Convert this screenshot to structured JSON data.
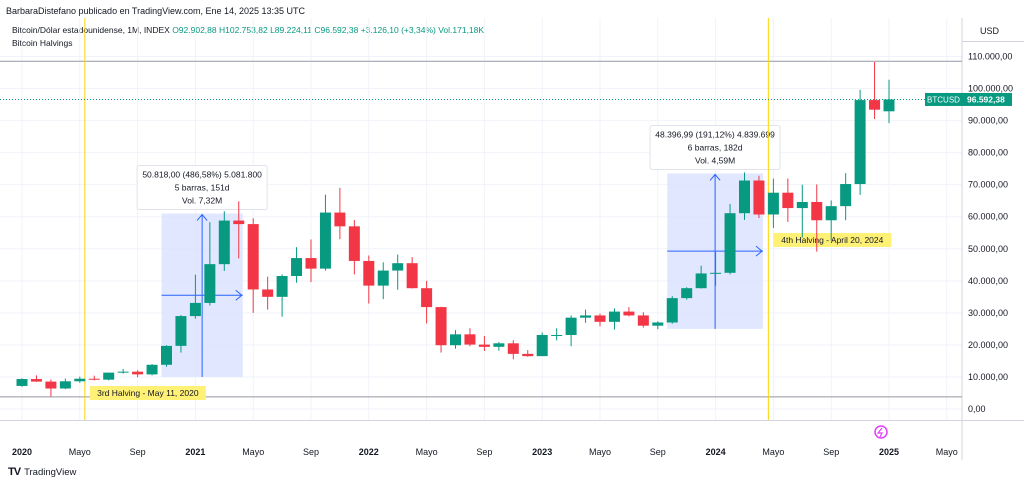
{
  "header": {
    "published_by": "BarbaraDistefano publicado en TradingView.com, Ene 14, 2025 13:35 UTC",
    "symbol_line": "Bitcoin/Dólar estadounidense, 1M, INDEX",
    "ohlc": {
      "open": "O92.902,88",
      "high": "H102.753,82",
      "low": "L89.224,11",
      "close": "C96.592,38",
      "change": "+3.126,10 (+3,34%)",
      "volume": "Vol.171,18K"
    },
    "indicator": "Bitcoin Halvings"
  },
  "price_axis": {
    "currency": "USD",
    "ticks": [
      "110.000,00",
      "100.000,00",
      "90.000,00",
      "80.000,00",
      "70.000,00",
      "60.000,00",
      "50.000,00",
      "40.000,00",
      "30.000,00",
      "20.000,00",
      "10.000,00",
      "0,00"
    ]
  },
  "time_axis": {
    "labels": [
      {
        "t": 0,
        "label": "2020",
        "bold": true
      },
      {
        "t": 4,
        "label": "Mayo",
        "bold": false
      },
      {
        "t": 8,
        "label": "Sep",
        "bold": false
      },
      {
        "t": 12,
        "label": "2021",
        "bold": true
      },
      {
        "t": 16,
        "label": "Mayo",
        "bold": false
      },
      {
        "t": 20,
        "label": "Sep",
        "bold": false
      },
      {
        "t": 24,
        "label": "2022",
        "bold": true
      },
      {
        "t": 28,
        "label": "Mayo",
        "bold": false
      },
      {
        "t": 32,
        "label": "Sep",
        "bold": false
      },
      {
        "t": 36,
        "label": "2023",
        "bold": true
      },
      {
        "t": 40,
        "label": "Mayo",
        "bold": false
      },
      {
        "t": 44,
        "label": "Sep",
        "bold": false
      },
      {
        "t": 48,
        "label": "2024",
        "bold": true
      },
      {
        "t": 52,
        "label": "Mayo",
        "bold": false
      },
      {
        "t": 56,
        "label": "Sep",
        "bold": false
      },
      {
        "t": 60,
        "label": "2025",
        "bold": true
      },
      {
        "t": 64,
        "label": "Mayo",
        "bold": false
      }
    ]
  },
  "price_label": {
    "symbol": "BTCUSD",
    "value": "96.592,38"
  },
  "halvings": [
    {
      "t": 4.35,
      "label": "3rd Halving - May 11, 2020"
    },
    {
      "t": 51.65,
      "label": "4th Halving - April 20, 2024"
    }
  ],
  "measures": [
    {
      "t_start": 10,
      "t_end": 15,
      "p_start": 10000,
      "p_end": 61000,
      "line1": "50.818,00 (486,58%) 5.081.800",
      "line2": "5 barras, 151d",
      "line3": "Vol. 7,32M"
    },
    {
      "t_start": 45,
      "t_end": 51,
      "p_start": 25000,
      "p_end": 73500,
      "line1": "48.396,99 (191,12%) 4.839.699",
      "line2": "6 barras, 182d",
      "line3": "Vol. 4,59M"
    }
  ],
  "reference_lines": {
    "upper": 108500,
    "lower": 3800
  },
  "colors": {
    "up": "#089981",
    "down": "#f23645",
    "measure_fill": "#dbe3ff",
    "measure_line": "#2962ff",
    "halving_line": "#ffd600",
    "halving_label_bg": "#fff176",
    "price_line": "#089981"
  },
  "footer": {
    "brand": "TradingView",
    "logo_text": "TV"
  },
  "chart_data": {
    "type": "candlestick",
    "title": "Bitcoin/Dólar estadounidense, 1M, INDEX",
    "ylabel": "USD",
    "ylim": [
      -4000,
      117000
    ],
    "series": [
      {
        "t": 0,
        "o": 7200,
        "h": 9600,
        "l": 6900,
        "c": 9350
      },
      {
        "t": 1,
        "o": 9350,
        "h": 10500,
        "l": 8500,
        "c": 8550
      },
      {
        "t": 2,
        "o": 8550,
        "h": 9200,
        "l": 3850,
        "c": 6400
      },
      {
        "t": 3,
        "o": 6400,
        "h": 9500,
        "l": 6200,
        "c": 8650
      },
      {
        "t": 4,
        "o": 8650,
        "h": 10100,
        "l": 8200,
        "c": 9450
      },
      {
        "t": 5,
        "o": 9450,
        "h": 10400,
        "l": 8900,
        "c": 9150
      },
      {
        "t": 6,
        "o": 9150,
        "h": 11400,
        "l": 8950,
        "c": 11350
      },
      {
        "t": 7,
        "o": 11350,
        "h": 12500,
        "l": 11050,
        "c": 11650
      },
      {
        "t": 8,
        "o": 11650,
        "h": 12100,
        "l": 9900,
        "c": 10800
      },
      {
        "t": 9,
        "o": 10800,
        "h": 14000,
        "l": 10500,
        "c": 13800
      },
      {
        "t": 10,
        "o": 13800,
        "h": 19900,
        "l": 13200,
        "c": 19700
      },
      {
        "t": 11,
        "o": 19700,
        "h": 29300,
        "l": 17600,
        "c": 29000
      },
      {
        "t": 12,
        "o": 29000,
        "h": 41900,
        "l": 28200,
        "c": 33100
      },
      {
        "t": 13,
        "o": 33100,
        "h": 58300,
        "l": 32300,
        "c": 45200
      },
      {
        "t": 14,
        "o": 45200,
        "h": 61700,
        "l": 43100,
        "c": 58800
      },
      {
        "t": 15,
        "o": 58800,
        "h": 64800,
        "l": 47000,
        "c": 57700
      },
      {
        "t": 16,
        "o": 57700,
        "h": 59500,
        "l": 30000,
        "c": 37300
      },
      {
        "t": 17,
        "o": 37300,
        "h": 41300,
        "l": 31000,
        "c": 35000
      },
      {
        "t": 18,
        "o": 35000,
        "h": 42000,
        "l": 28800,
        "c": 41500
      },
      {
        "t": 19,
        "o": 41500,
        "h": 50500,
        "l": 39400,
        "c": 47100
      },
      {
        "t": 20,
        "o": 47100,
        "h": 52900,
        "l": 39600,
        "c": 43800
      },
      {
        "t": 21,
        "o": 43800,
        "h": 66900,
        "l": 43200,
        "c": 61300
      },
      {
        "t": 22,
        "o": 61300,
        "h": 69000,
        "l": 53000,
        "c": 57000
      },
      {
        "t": 23,
        "o": 57000,
        "h": 59000,
        "l": 42000,
        "c": 46200
      },
      {
        "t": 24,
        "o": 46200,
        "h": 47900,
        "l": 32900,
        "c": 38500
      },
      {
        "t": 25,
        "o": 38500,
        "h": 45800,
        "l": 34300,
        "c": 43200
      },
      {
        "t": 26,
        "o": 43200,
        "h": 48200,
        "l": 37200,
        "c": 45500
      },
      {
        "t": 27,
        "o": 45500,
        "h": 47400,
        "l": 37600,
        "c": 37700
      },
      {
        "t": 28,
        "o": 37700,
        "h": 40000,
        "l": 26700,
        "c": 31800
      },
      {
        "t": 29,
        "o": 31800,
        "h": 31900,
        "l": 17600,
        "c": 19900
      },
      {
        "t": 30,
        "o": 19900,
        "h": 24600,
        "l": 18800,
        "c": 23300
      },
      {
        "t": 31,
        "o": 23300,
        "h": 25200,
        "l": 19600,
        "c": 20100
      },
      {
        "t": 32,
        "o": 20100,
        "h": 22800,
        "l": 18100,
        "c": 19400
      },
      {
        "t": 33,
        "o": 19400,
        "h": 20900,
        "l": 18200,
        "c": 20500
      },
      {
        "t": 34,
        "o": 20500,
        "h": 21500,
        "l": 15500,
        "c": 17200
      },
      {
        "t": 35,
        "o": 17200,
        "h": 18400,
        "l": 16300,
        "c": 16500
      },
      {
        "t": 36,
        "o": 16500,
        "h": 23900,
        "l": 16500,
        "c": 23100
      },
      {
        "t": 37,
        "o": 23100,
        "h": 25200,
        "l": 21400,
        "c": 23100
      },
      {
        "t": 38,
        "o": 23100,
        "h": 29200,
        "l": 19600,
        "c": 28500
      },
      {
        "t": 39,
        "o": 28500,
        "h": 31000,
        "l": 26900,
        "c": 29200
      },
      {
        "t": 40,
        "o": 29200,
        "h": 29800,
        "l": 25800,
        "c": 27200
      },
      {
        "t": 41,
        "o": 27200,
        "h": 31400,
        "l": 24800,
        "c": 30400
      },
      {
        "t": 42,
        "o": 30400,
        "h": 31800,
        "l": 28900,
        "c": 29200
      },
      {
        "t": 43,
        "o": 29200,
        "h": 30200,
        "l": 25400,
        "c": 26000
      },
      {
        "t": 44,
        "o": 26000,
        "h": 27400,
        "l": 24900,
        "c": 27000
      },
      {
        "t": 45,
        "o": 27000,
        "h": 35200,
        "l": 26600,
        "c": 34600
      },
      {
        "t": 46,
        "o": 34600,
        "h": 38000,
        "l": 34100,
        "c": 37700
      },
      {
        "t": 47,
        "o": 37700,
        "h": 44700,
        "l": 37600,
        "c": 42300
      },
      {
        "t": 48,
        "o": 42300,
        "h": 48900,
        "l": 38500,
        "c": 42500
      },
      {
        "t": 49,
        "o": 42500,
        "h": 64000,
        "l": 42000,
        "c": 61100
      },
      {
        "t": 50,
        "o": 61100,
        "h": 73800,
        "l": 59000,
        "c": 71300
      },
      {
        "t": 51,
        "o": 71300,
        "h": 72800,
        "l": 59600,
        "c": 60700
      },
      {
        "t": 52,
        "o": 60700,
        "h": 71900,
        "l": 56500,
        "c": 67500
      },
      {
        "t": 53,
        "o": 67500,
        "h": 71900,
        "l": 58400,
        "c": 62700
      },
      {
        "t": 54,
        "o": 62700,
        "h": 70000,
        "l": 53500,
        "c": 64600
      },
      {
        "t": 55,
        "o": 64600,
        "h": 70100,
        "l": 49100,
        "c": 58900
      },
      {
        "t": 56,
        "o": 58900,
        "h": 65100,
        "l": 52500,
        "c": 63300
      },
      {
        "t": 57,
        "o": 63300,
        "h": 73600,
        "l": 58900,
        "c": 70200
      },
      {
        "t": 58,
        "o": 70200,
        "h": 99600,
        "l": 66800,
        "c": 96400
      },
      {
        "t": 59,
        "o": 96400,
        "h": 108300,
        "l": 90500,
        "c": 93400
      },
      {
        "t": 60,
        "o": 92900,
        "h": 102750,
        "l": 89200,
        "c": 96600
      }
    ]
  }
}
